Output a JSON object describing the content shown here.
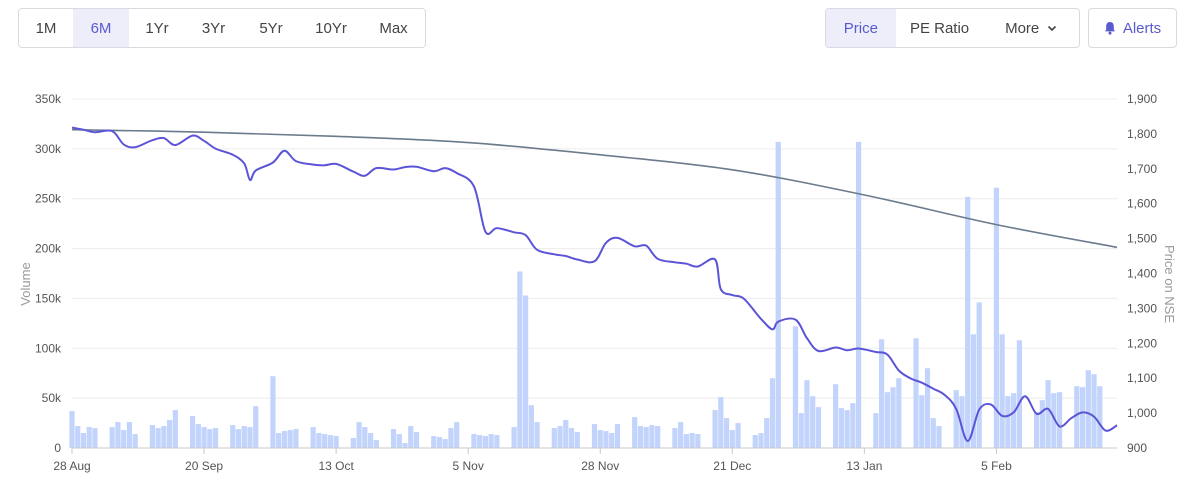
{
  "toolbar": {
    "ranges": [
      "1M",
      "6M",
      "1Yr",
      "3Yr",
      "5Yr",
      "10Yr",
      "Max"
    ],
    "active_range": "6M",
    "views": [
      "Price",
      "PE Ratio",
      "More"
    ],
    "active_view": "Price",
    "alerts_label": "Alerts"
  },
  "colors": {
    "price_line": "#5b54d6",
    "dma_line": "#6b7b8c",
    "volume_bar": "#c2d4fb",
    "accent": "#5a5ad0"
  },
  "chart_data": {
    "type": "line",
    "xlabel": "",
    "ylabel_left": "Volume",
    "ylabel_right": "Price on NSE",
    "x_ticks": [
      "28 Aug",
      "20 Sep",
      "13 Oct",
      "5 Nov",
      "28 Nov",
      "21 Dec",
      "13 Jan",
      "5 Feb"
    ],
    "left_axis": {
      "ticks": [
        "0",
        "50k",
        "100k",
        "150k",
        "200k",
        "250k",
        "300k",
        "350k"
      ],
      "ylim": [
        0,
        350000
      ]
    },
    "right_axis": {
      "ticks": [
        "900",
        "1,000",
        "1,100",
        "1,200",
        "1,300",
        "1,400",
        "1,500",
        "1,600",
        "1,700",
        "1,800",
        "1,900"
      ],
      "ylim": [
        900,
        1900
      ]
    },
    "grid": true,
    "series": [
      {
        "type": "line",
        "axis": "right",
        "color": "#5b54d6",
        "points": [
          [
            "2023-08-28",
            1818
          ],
          [
            "2023-08-30",
            1812
          ],
          [
            "2023-09-01",
            1805
          ],
          [
            "2023-09-04",
            1808
          ],
          [
            "2023-09-06",
            1770
          ],
          [
            "2023-09-08",
            1762
          ],
          [
            "2023-09-11",
            1782
          ],
          [
            "2023-09-13",
            1788
          ],
          [
            "2023-09-15",
            1768
          ],
          [
            "2023-09-18",
            1795
          ],
          [
            "2023-09-20",
            1780
          ],
          [
            "2023-09-22",
            1758
          ],
          [
            "2023-09-25",
            1740
          ],
          [
            "2023-09-27",
            1715
          ],
          [
            "2023-09-28",
            1668
          ],
          [
            "2023-09-29",
            1695
          ],
          [
            "2023-10-02",
            1718
          ],
          [
            "2023-10-04",
            1752
          ],
          [
            "2023-10-06",
            1722
          ],
          [
            "2023-10-09",
            1712
          ],
          [
            "2023-10-11",
            1710
          ],
          [
            "2023-10-13",
            1714
          ],
          [
            "2023-10-16",
            1692
          ],
          [
            "2023-10-18",
            1680
          ],
          [
            "2023-10-20",
            1702
          ],
          [
            "2023-10-23",
            1698
          ],
          [
            "2023-10-25",
            1705
          ],
          [
            "2023-10-27",
            1706
          ],
          [
            "2023-10-30",
            1693
          ],
          [
            "2023-11-01",
            1702
          ],
          [
            "2023-11-03",
            1688
          ],
          [
            "2023-11-06",
            1650
          ],
          [
            "2023-11-08",
            1520
          ],
          [
            "2023-11-10",
            1530
          ],
          [
            "2023-11-13",
            1518
          ],
          [
            "2023-11-15",
            1510
          ],
          [
            "2023-11-17",
            1468
          ],
          [
            "2023-11-20",
            1455
          ],
          [
            "2023-11-22",
            1450
          ],
          [
            "2023-11-24",
            1440
          ],
          [
            "2023-11-27",
            1435
          ],
          [
            "2023-11-29",
            1488
          ],
          [
            "2023-12-01",
            1502
          ],
          [
            "2023-12-04",
            1478
          ],
          [
            "2023-12-06",
            1480
          ],
          [
            "2023-12-08",
            1442
          ],
          [
            "2023-12-11",
            1432
          ],
          [
            "2023-12-13",
            1428
          ],
          [
            "2023-12-15",
            1420
          ],
          [
            "2023-12-18",
            1440
          ],
          [
            "2023-12-19",
            1355
          ],
          [
            "2023-12-21",
            1338
          ],
          [
            "2023-12-23",
            1328
          ],
          [
            "2023-12-26",
            1270
          ],
          [
            "2023-12-28",
            1240
          ],
          [
            "2023-12-29",
            1262
          ],
          [
            "2024-01-01",
            1268
          ],
          [
            "2024-01-03",
            1215
          ],
          [
            "2024-01-05",
            1178
          ],
          [
            "2024-01-08",
            1188
          ],
          [
            "2024-01-10",
            1180
          ],
          [
            "2024-01-12",
            1185
          ],
          [
            "2024-01-15",
            1175
          ],
          [
            "2024-01-17",
            1168
          ],
          [
            "2024-01-19",
            1122
          ],
          [
            "2024-01-21",
            1100
          ],
          [
            "2024-01-23",
            1087
          ],
          [
            "2024-01-25",
            1070
          ],
          [
            "2024-01-27",
            1052
          ],
          [
            "2024-01-29",
            1012
          ],
          [
            "2024-01-31",
            920
          ],
          [
            "2024-02-02",
            1010
          ],
          [
            "2024-02-04",
            1025
          ],
          [
            "2024-02-06",
            992
          ],
          [
            "2024-02-08",
            1002
          ],
          [
            "2024-02-10",
            1048
          ],
          [
            "2024-02-12",
            998
          ],
          [
            "2024-02-14",
            1012
          ],
          [
            "2024-02-16",
            962
          ],
          [
            "2024-02-18",
            985
          ],
          [
            "2024-02-20",
            1002
          ],
          [
            "2024-02-22",
            990
          ],
          [
            "2024-02-24",
            950
          ],
          [
            "2024-02-26",
            965
          ]
        ]
      },
      {
        "type": "line",
        "axis": "right",
        "color": "#6b7b8c",
        "points": [
          [
            "2023-08-28",
            1812
          ],
          [
            "2023-09-20",
            1805
          ],
          [
            "2023-10-13",
            1793
          ],
          [
            "2023-11-05",
            1775
          ],
          [
            "2023-11-28",
            1740
          ],
          [
            "2023-12-21",
            1697
          ],
          [
            "2024-01-13",
            1625
          ],
          [
            "2024-02-05",
            1540
          ],
          [
            "2024-02-26",
            1475
          ]
        ]
      },
      {
        "type": "bar",
        "axis": "left",
        "color": "#c2d4fb",
        "points": [
          [
            "2023-08-28",
            37000
          ],
          [
            "2023-08-29",
            22000
          ],
          [
            "2023-08-30",
            15000
          ],
          [
            "2023-08-31",
            21000
          ],
          [
            "2023-09-01",
            20000
          ],
          [
            "2023-09-04",
            21000
          ],
          [
            "2023-09-05",
            26000
          ],
          [
            "2023-09-06",
            18000
          ],
          [
            "2023-09-07",
            26000
          ],
          [
            "2023-09-08",
            14000
          ],
          [
            "2023-09-11",
            23000
          ],
          [
            "2023-09-12",
            20000
          ],
          [
            "2023-09-13",
            22000
          ],
          [
            "2023-09-14",
            28000
          ],
          [
            "2023-09-15",
            38000
          ],
          [
            "2023-09-18",
            32000
          ],
          [
            "2023-09-19",
            24000
          ],
          [
            "2023-09-20",
            21000
          ],
          [
            "2023-09-21",
            19000
          ],
          [
            "2023-09-22",
            20000
          ],
          [
            "2023-09-25",
            23000
          ],
          [
            "2023-09-26",
            19000
          ],
          [
            "2023-09-27",
            22000
          ],
          [
            "2023-09-28",
            21000
          ],
          [
            "2023-09-29",
            42000
          ],
          [
            "2023-10-02",
            72000
          ],
          [
            "2023-10-03",
            15000
          ],
          [
            "2023-10-04",
            17000
          ],
          [
            "2023-10-05",
            18000
          ],
          [
            "2023-10-06",
            19000
          ],
          [
            "2023-10-09",
            21000
          ],
          [
            "2023-10-10",
            15000
          ],
          [
            "2023-10-11",
            14000
          ],
          [
            "2023-10-12",
            13000
          ],
          [
            "2023-10-13",
            12000
          ],
          [
            "2023-10-16",
            10000
          ],
          [
            "2023-10-17",
            26000
          ],
          [
            "2023-10-18",
            21000
          ],
          [
            "2023-10-19",
            15000
          ],
          [
            "2023-10-20",
            8000
          ],
          [
            "2023-10-23",
            19000
          ],
          [
            "2023-10-24",
            14000
          ],
          [
            "2023-10-25",
            5000
          ],
          [
            "2023-10-26",
            22000
          ],
          [
            "2023-10-27",
            16000
          ],
          [
            "2023-10-30",
            12000
          ],
          [
            "2023-10-31",
            11000
          ],
          [
            "2023-11-01",
            9000
          ],
          [
            "2023-11-02",
            20000
          ],
          [
            "2023-11-03",
            26000
          ],
          [
            "2023-11-06",
            14000
          ],
          [
            "2023-11-07",
            13000
          ],
          [
            "2023-11-08",
            12000
          ],
          [
            "2023-11-09",
            14000
          ],
          [
            "2023-11-10",
            13000
          ],
          [
            "2023-11-13",
            21000
          ],
          [
            "2023-11-14",
            177000
          ],
          [
            "2023-11-15",
            153000
          ],
          [
            "2023-11-16",
            43000
          ],
          [
            "2023-11-17",
            26000
          ],
          [
            "2023-11-20",
            20000
          ],
          [
            "2023-11-21",
            22000
          ],
          [
            "2023-11-22",
            28000
          ],
          [
            "2023-11-23",
            20000
          ],
          [
            "2023-11-24",
            16000
          ],
          [
            "2023-11-27",
            24000
          ],
          [
            "2023-11-28",
            18000
          ],
          [
            "2023-11-29",
            17000
          ],
          [
            "2023-11-30",
            15000
          ],
          [
            "2023-12-01",
            24000
          ],
          [
            "2023-12-04",
            31000
          ],
          [
            "2023-12-05",
            22000
          ],
          [
            "2023-12-06",
            21000
          ],
          [
            "2023-12-07",
            23000
          ],
          [
            "2023-12-08",
            22000
          ],
          [
            "2023-12-11",
            20000
          ],
          [
            "2023-12-12",
            26000
          ],
          [
            "2023-12-13",
            14000
          ],
          [
            "2023-12-14",
            15000
          ],
          [
            "2023-12-15",
            14000
          ],
          [
            "2023-12-18",
            38000
          ],
          [
            "2023-12-19",
            51000
          ],
          [
            "2023-12-20",
            30000
          ],
          [
            "2023-12-21",
            18000
          ],
          [
            "2023-12-22",
            25000
          ],
          [
            "2023-12-25",
            13000
          ],
          [
            "2023-12-26",
            15000
          ],
          [
            "2023-12-27",
            30000
          ],
          [
            "2023-12-28",
            70000
          ],
          [
            "2023-12-29",
            307000
          ],
          [
            "2024-01-01",
            122000
          ],
          [
            "2024-01-02",
            35000
          ],
          [
            "2024-01-03",
            68000
          ],
          [
            "2024-01-04",
            52000
          ],
          [
            "2024-01-05",
            41000
          ],
          [
            "2024-01-08",
            64000
          ],
          [
            "2024-01-09",
            40000
          ],
          [
            "2024-01-10",
            38000
          ],
          [
            "2024-01-11",
            45000
          ],
          [
            "2024-01-12",
            307000
          ],
          [
            "2024-01-15",
            35000
          ],
          [
            "2024-01-16",
            109000
          ],
          [
            "2024-01-17",
            56000
          ],
          [
            "2024-01-18",
            61000
          ],
          [
            "2024-01-19",
            70000
          ],
          [
            "2024-01-22",
            110000
          ],
          [
            "2024-01-23",
            53000
          ],
          [
            "2024-01-24",
            80000
          ],
          [
            "2024-01-25",
            30000
          ],
          [
            "2024-01-26",
            22000
          ],
          [
            "2024-01-29",
            58000
          ],
          [
            "2024-01-30",
            52000
          ],
          [
            "2024-01-31",
            252000
          ],
          [
            "2024-02-01",
            114000
          ],
          [
            "2024-02-02",
            146000
          ],
          [
            "2024-02-05",
            261000
          ],
          [
            "2024-02-06",
            114000
          ],
          [
            "2024-02-07",
            52000
          ],
          [
            "2024-02-08",
            55000
          ],
          [
            "2024-02-09",
            108000
          ],
          [
            "2024-02-12",
            36000
          ],
          [
            "2024-02-13",
            48000
          ],
          [
            "2024-02-14",
            68000
          ],
          [
            "2024-02-15",
            55000
          ],
          [
            "2024-02-16",
            56000
          ],
          [
            "2024-02-19",
            62000
          ],
          [
            "2024-02-20",
            61000
          ],
          [
            "2024-02-21",
            78000
          ],
          [
            "2024-02-22",
            74000
          ],
          [
            "2024-02-23",
            62000
          ]
        ]
      }
    ]
  }
}
